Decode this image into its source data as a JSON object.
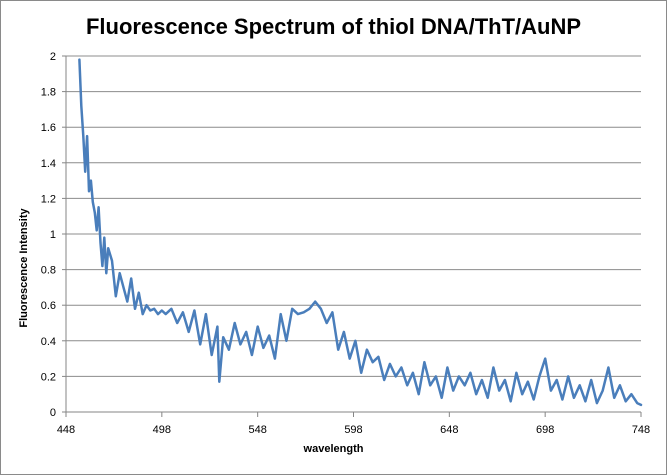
{
  "chart_data": {
    "type": "line",
    "title": "Fluorescence Spectrum of thiol DNA/ThT/AuNP",
    "xlabel": "wavelength",
    "ylabel": "Fluorescence  Intensity",
    "xlim": [
      448,
      748
    ],
    "ylim": [
      0,
      2
    ],
    "x_ticks": [
      "448",
      "498",
      "548",
      "598",
      "648",
      "698",
      "748"
    ],
    "y_ticks": [
      "0",
      "0.2",
      "0.4",
      "0.6",
      "0.8",
      "1",
      "1.2",
      "1.4",
      "1.6",
      "1.8",
      "2"
    ],
    "grid": "horizontal",
    "legend": "none",
    "series_color": "#4a7ebb",
    "grid_color": "#8c8c8c",
    "series": [
      {
        "x": [
          "455",
          "456",
          "457",
          "458",
          "459",
          "460",
          "461",
          "462",
          "463",
          "464",
          "465",
          "466",
          "467",
          "468",
          "469",
          "470",
          "472",
          "474",
          "476",
          "478",
          "480",
          "482",
          "484",
          "486",
          "488",
          "490",
          "492",
          "494",
          "496",
          "498",
          "500",
          "503",
          "506",
          "509",
          "512",
          "515",
          "518",
          "521",
          "524",
          "527",
          "528",
          "530",
          "533",
          "536",
          "539",
          "542",
          "545",
          "548",
          "551",
          "554",
          "557",
          "560",
          "563",
          "566",
          "569",
          "572",
          "575",
          "578",
          "581",
          "584",
          "587",
          "590",
          "593",
          "596",
          "599",
          "602",
          "605",
          "608",
          "611",
          "614",
          "617",
          "620",
          "623",
          "626",
          "629",
          "632",
          "635",
          "638",
          "641",
          "644",
          "647",
          "650",
          "653",
          "656",
          "659",
          "662",
          "665",
          "668",
          "671",
          "674",
          "677",
          "680",
          "683",
          "686",
          "689",
          "692",
          "695",
          "698",
          "701",
          "704",
          "707",
          "710",
          "713",
          "716",
          "719",
          "722",
          "725",
          "728",
          "731",
          "734",
          "737",
          "740",
          "743",
          "746",
          "748"
        ],
        "y": [
          "1.98",
          "1.72",
          "1.55",
          "1.35",
          "1.55",
          "1.24",
          "1.3",
          "1.18",
          "1.12",
          "1.02",
          "1.15",
          "0.95",
          "0.82",
          "0.98",
          "0.78",
          "0.92",
          "0.85",
          "0.65",
          "0.78",
          "0.7",
          "0.62",
          "0.75",
          "0.58",
          "0.67",
          "0.55",
          "0.6",
          "0.57",
          "0.58",
          "0.55",
          "0.57",
          "0.55",
          "0.58",
          "0.5",
          "0.56",
          "0.45",
          "0.57",
          "0.38",
          "0.55",
          "0.32",
          "0.48",
          "0.17",
          "0.42",
          "0.35",
          "0.5",
          "0.38",
          "0.45",
          "0.32",
          "0.48",
          "0.36",
          "0.43",
          "0.3",
          "0.55",
          "0.4",
          "0.58",
          "0.55",
          "0.56",
          "0.58",
          "0.62",
          "0.58",
          "0.5",
          "0.56",
          "0.35",
          "0.45",
          "0.3",
          "0.4",
          "0.22",
          "0.35",
          "0.28",
          "0.31",
          "0.18",
          "0.27",
          "0.2",
          "0.25",
          "0.15",
          "0.22",
          "0.1",
          "0.28",
          "0.15",
          "0.2",
          "0.08",
          "0.25",
          "0.12",
          "0.2",
          "0.15",
          "0.22",
          "0.1",
          "0.18",
          "0.08",
          "0.25",
          "0.12",
          "0.18",
          "0.06",
          "0.22",
          "0.1",
          "0.17",
          "0.07",
          "0.2",
          "0.3",
          "0.12",
          "0.18",
          "0.07",
          "0.2",
          "0.08",
          "0.15",
          "0.06",
          "0.18",
          "0.05",
          "0.12",
          "0.25",
          "0.08",
          "0.15",
          "0.06",
          "0.1",
          "0.05",
          "0.04"
        ]
      }
    ]
  }
}
